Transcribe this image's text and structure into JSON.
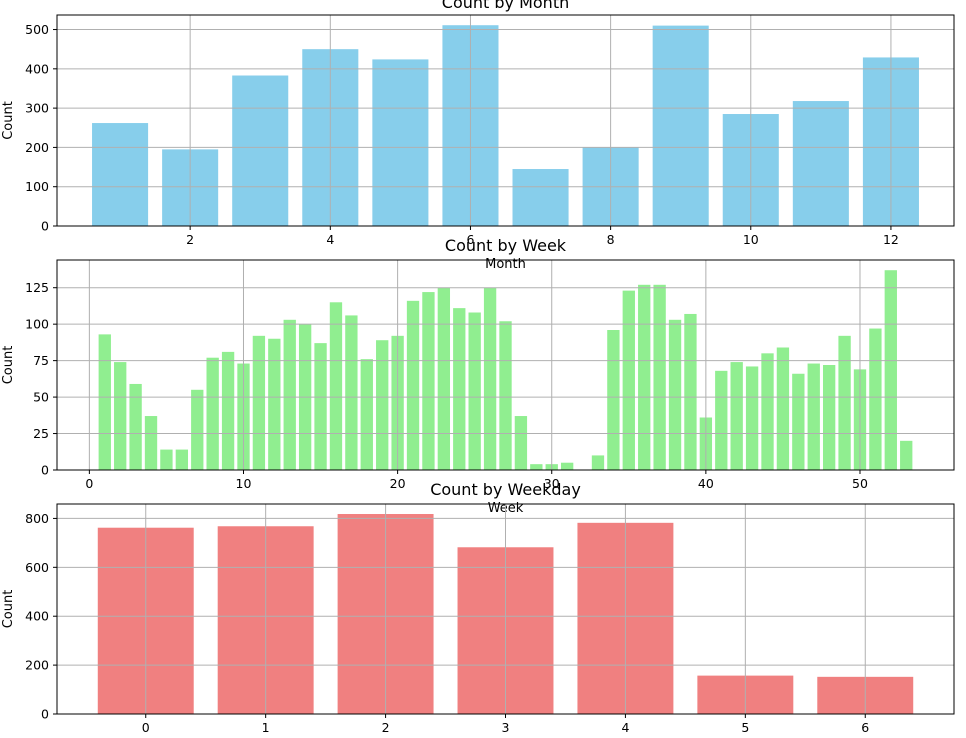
{
  "chart_data": [
    {
      "type": "bar",
      "title": "Count by Month",
      "xlabel": "Month",
      "ylabel": "Count",
      "color": "#87ceeb",
      "x": [
        1,
        2,
        3,
        4,
        5,
        6,
        7,
        8,
        9,
        10,
        11,
        12
      ],
      "values": [
        262,
        195,
        383,
        450,
        424,
        511,
        145,
        200,
        510,
        285,
        318,
        429
      ],
      "xlim": [
        0.1,
        12.9
      ],
      "ylim": [
        0,
        537
      ],
      "xticks": [
        2,
        4,
        6,
        8,
        10,
        12
      ],
      "yticks": [
        0,
        100,
        200,
        300,
        400,
        500
      ],
      "bar_width": 0.8,
      "grid": true
    },
    {
      "type": "bar",
      "title": "Count by Week",
      "xlabel": "Week",
      "ylabel": "Count",
      "color": "#90ee90",
      "x": [
        1,
        2,
        3,
        4,
        5,
        6,
        7,
        8,
        9,
        10,
        11,
        12,
        13,
        14,
        15,
        16,
        17,
        18,
        19,
        20,
        21,
        22,
        23,
        24,
        25,
        26,
        27,
        28,
        29,
        30,
        31,
        32,
        33,
        34,
        35,
        36,
        37,
        38,
        39,
        40,
        41,
        42,
        43,
        44,
        45,
        46,
        47,
        48,
        49,
        50,
        51,
        52,
        53
      ],
      "values": [
        93,
        74,
        59,
        37,
        14,
        14,
        55,
        77,
        81,
        73,
        92,
        90,
        103,
        100,
        87,
        115,
        106,
        76,
        89,
        92,
        116,
        122,
        125,
        111,
        108,
        125,
        102,
        37,
        4,
        4,
        5,
        0,
        10,
        96,
        123,
        127,
        127,
        103,
        107,
        36,
        68,
        74,
        71,
        80,
        84,
        66,
        73,
        72,
        92,
        69,
        97,
        137,
        20
      ],
      "xlim": [
        -2.1,
        56.1
      ],
      "ylim": [
        0,
        144
      ],
      "xticks": [
        0,
        10,
        20,
        30,
        40,
        50
      ],
      "yticks": [
        0,
        25,
        50,
        75,
        100,
        125
      ],
      "bar_width": 0.8,
      "grid": true
    },
    {
      "type": "bar",
      "title": "Count by Weekday",
      "xlabel": "",
      "ylabel": "Count",
      "color": "#f08080",
      "x": [
        0,
        1,
        2,
        3,
        4,
        5,
        6
      ],
      "values": [
        762,
        768,
        818,
        682,
        782,
        157,
        152
      ],
      "xlim": [
        -0.74,
        6.74
      ],
      "ylim": [
        0,
        859
      ],
      "xticks": [
        0,
        1,
        2,
        3,
        4,
        5,
        6
      ],
      "yticks": [
        0,
        200,
        400,
        600,
        800
      ],
      "bar_width": 0.8,
      "grid": true
    }
  ]
}
